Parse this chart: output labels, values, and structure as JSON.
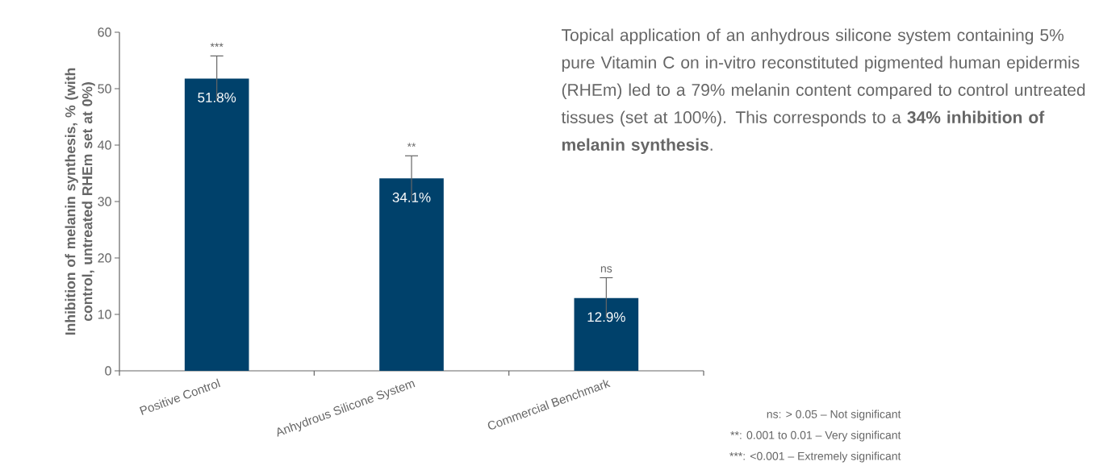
{
  "chart_data": {
    "type": "bar",
    "ylabel": "Inhibition of melanin synthesis, % (with control, untreated RHEm set at 0%)",
    "categories": [
      "Positive Control",
      "Anhydrous Silicone System",
      "Commercial Benchmark"
    ],
    "values": [
      51.8,
      34.1,
      12.9
    ],
    "errors": [
      4,
      4,
      3.6
    ],
    "value_labels": [
      "51.8%",
      "34.1%",
      "12.9%"
    ],
    "color": "#00416b",
    "ylim": [
      0,
      60
    ],
    "yticks": [
      0,
      10,
      20,
      30,
      40,
      50,
      60
    ],
    "grid": false,
    "annotations": [
      "Topical application of an anhydrous silicone system containing 5% pure Vitamin C on in-vitro reconstituted pigmented human epidermis (RHEm) led to a 79% melanin content compared to control untreated tissues (set at 100%). This corresponds to a **34% inhibition of melanin synthesis**.",
      "***",
      "**",
      "ns",
      "ns: > 0.05 – Not significant",
      "**: 0.001 to 0.01 – Very significant",
      "***: <0.001 – Extremely significant"
    ]
  }
}
